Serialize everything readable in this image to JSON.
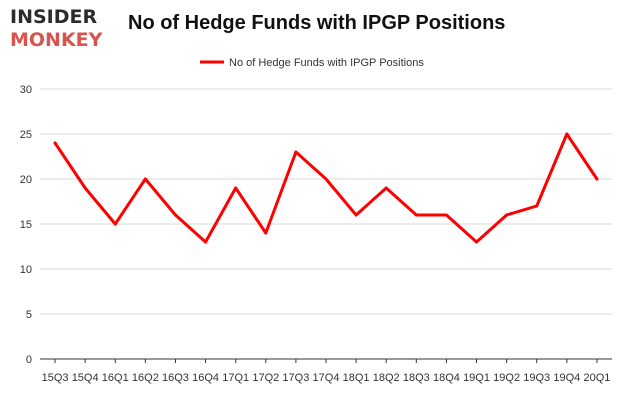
{
  "logo": {
    "line1": "INSIDER",
    "line2": "MONKEY"
  },
  "colors": {
    "series": "#ff0000",
    "grid": "#d9d9d9",
    "axis": "#333333",
    "logo_dark": "#2b2b2b",
    "logo_accent": "#d9534f"
  },
  "chart_data": {
    "type": "line",
    "title": "No of Hedge Funds with IPGP Positions",
    "categories": [
      "15Q3",
      "15Q4",
      "16Q1",
      "16Q2",
      "16Q3",
      "16Q4",
      "17Q1",
      "17Q2",
      "17Q3",
      "17Q4",
      "18Q1",
      "18Q2",
      "18Q3",
      "18Q4",
      "19Q1",
      "19Q2",
      "19Q3",
      "19Q4",
      "20Q1"
    ],
    "series": [
      {
        "name": "No of Hedge Funds with IPGP Positions",
        "values": [
          24,
          19,
          15,
          20,
          16,
          13,
          19,
          14,
          23,
          20,
          16,
          19,
          16,
          16,
          13,
          16,
          17,
          25,
          20
        ]
      }
    ],
    "ylim": [
      0,
      30
    ],
    "yticks": [
      0,
      5,
      10,
      15,
      20,
      25,
      30
    ],
    "grid": true,
    "legend": "top-center"
  }
}
